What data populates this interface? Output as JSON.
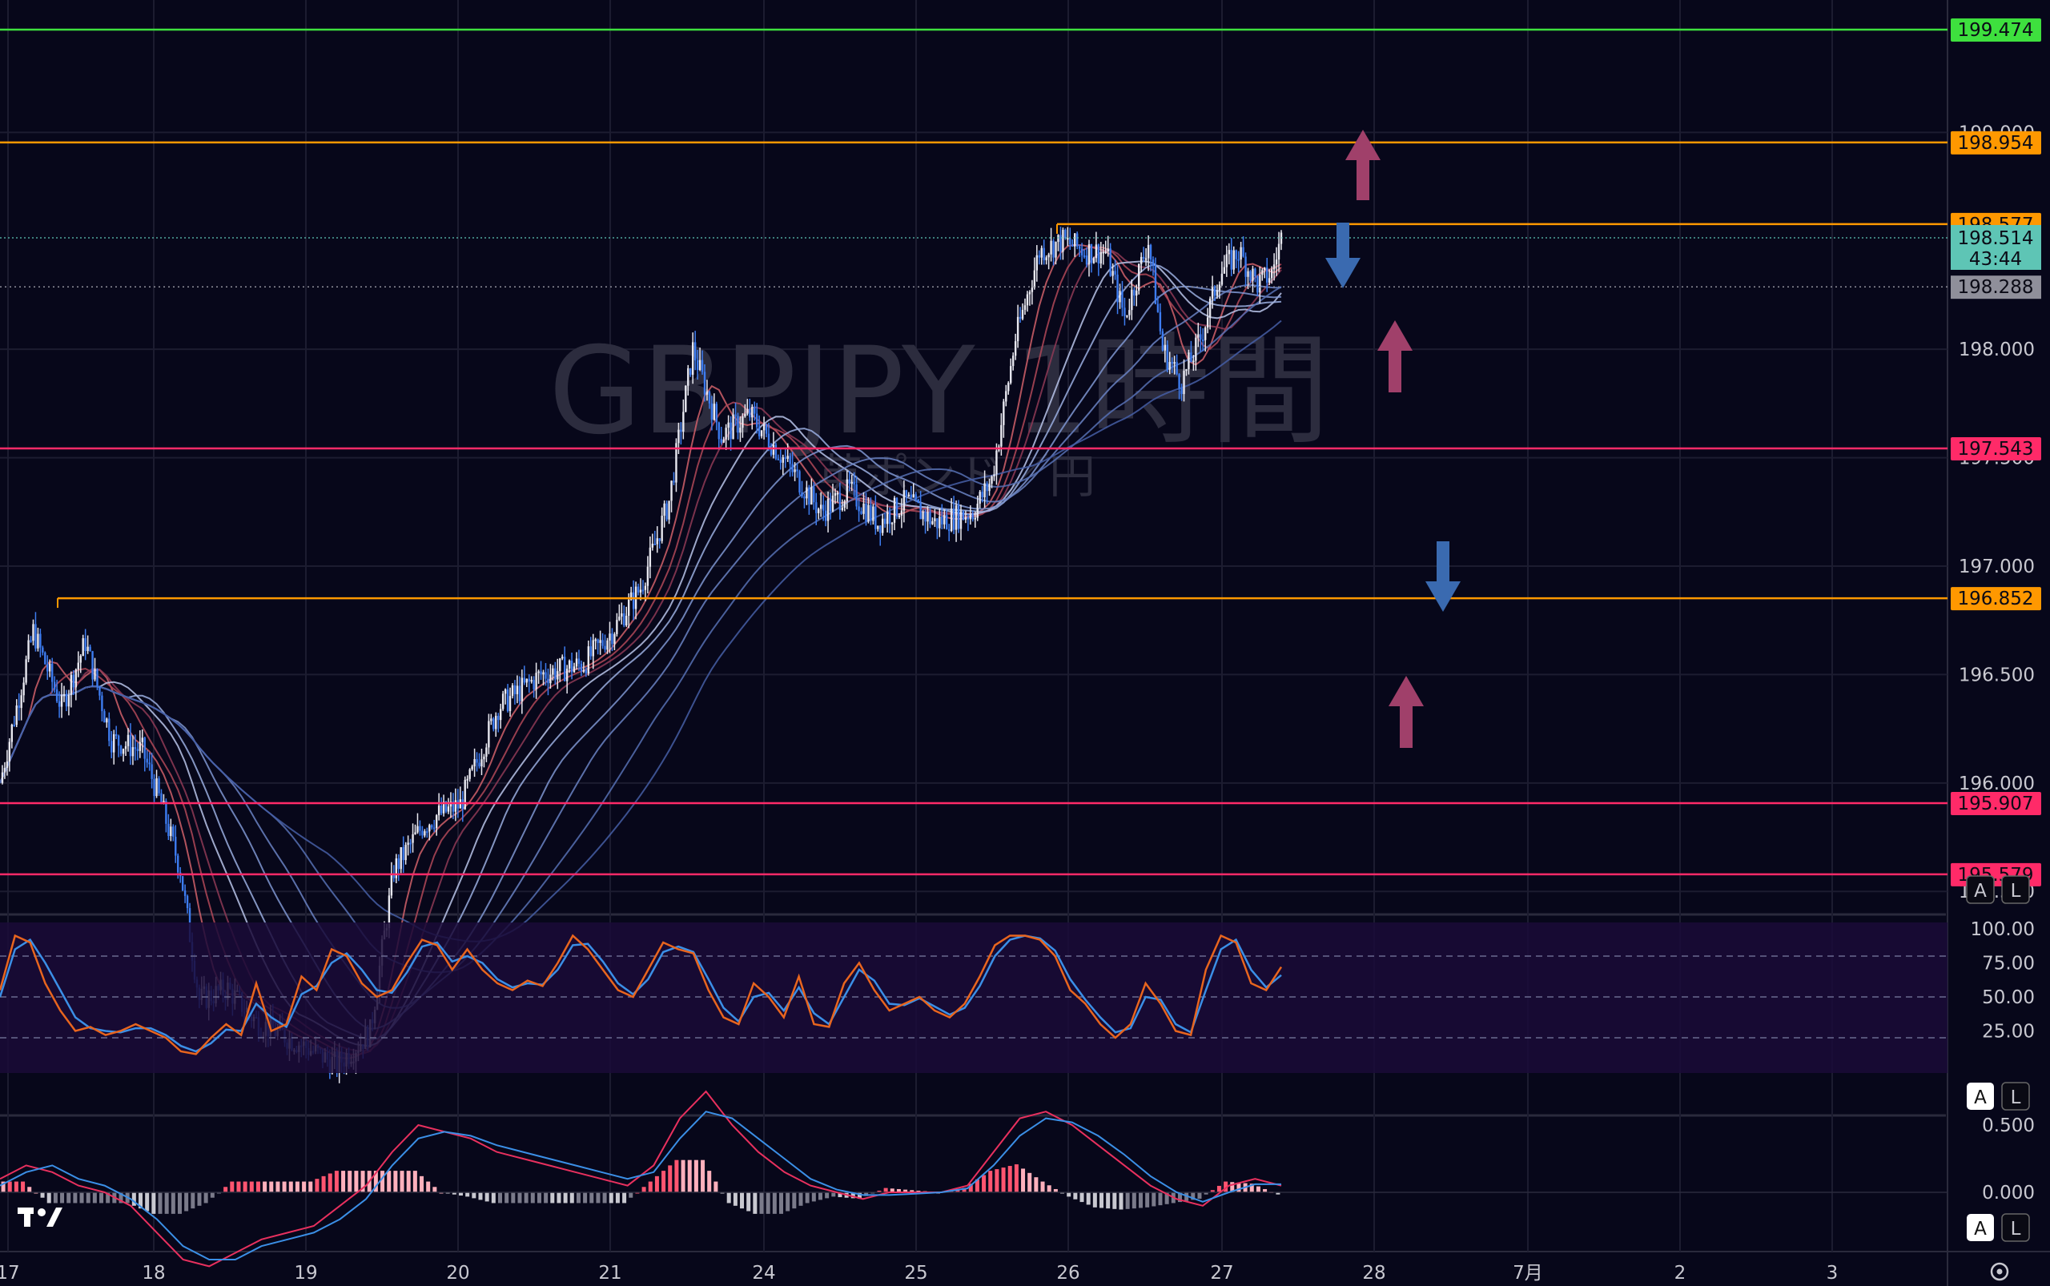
{
  "chart_data": {
    "type": "candlestick",
    "title": "GBPJPY 1時間",
    "subtitle": "英ポンド／円",
    "timeframe": "1時間",
    "x_tick_labels": [
      "17",
      "18",
      "19",
      "20",
      "21",
      "24",
      "25",
      "26",
      "27",
      "28",
      "7月",
      "2",
      "3"
    ],
    "price_axis": {
      "ticks": [
        "199.000",
        "198.000",
        "197.500",
        "197.000",
        "196.500",
        "196.000",
        "195.500"
      ],
      "range": [
        195.0,
        199.6
      ]
    },
    "horizontal_lines": [
      {
        "price": 199.474,
        "label": "199.474",
        "color": "#3ee03e"
      },
      {
        "price": 198.954,
        "label": "198.954",
        "color": "#ff9800"
      },
      {
        "price": 198.577,
        "label": "198.577",
        "color": "#ff9800"
      },
      {
        "price": 197.543,
        "label": "197.543",
        "color": "#ff2a68"
      },
      {
        "price": 196.852,
        "label": "196.852",
        "color": "#ff9800"
      },
      {
        "price": 195.907,
        "label": "195.907",
        "color": "#ff2a68"
      },
      {
        "price": 195.579,
        "label": "195.579",
        "color": "#ff2a68"
      }
    ],
    "current_price": {
      "price": 198.514,
      "label": "198.514",
      "countdown": "43:44",
      "color": "#5ec5b5"
    },
    "dotted_level": {
      "price": 198.288,
      "label": "198.288",
      "color": "#8f8f9a"
    },
    "close_path": [
      [
        0,
        196.0
      ],
      [
        14,
        196.7
      ],
      [
        26,
        196.35
      ],
      [
        36,
        196.65
      ],
      [
        47,
        196.2
      ],
      [
        60,
        196.15
      ],
      [
        68,
        195.9
      ],
      [
        76,
        195.6
      ],
      [
        84,
        195.0
      ],
      [
        96,
        195.05
      ],
      [
        108,
        194.9
      ],
      [
        126,
        194.8
      ],
      [
        142,
        194.7
      ],
      [
        156,
        194.85
      ],
      [
        166,
        195.6
      ],
      [
        178,
        195.8
      ],
      [
        184,
        195.85
      ],
      [
        194,
        195.9
      ],
      [
        210,
        196.35
      ],
      [
        228,
        196.5
      ],
      [
        246,
        196.55
      ],
      [
        258,
        196.7
      ],
      [
        270,
        196.9
      ],
      [
        282,
        197.3
      ],
      [
        292,
        198.0
      ],
      [
        304,
        197.6
      ],
      [
        316,
        197.7
      ],
      [
        330,
        197.5
      ],
      [
        346,
        197.25
      ],
      [
        358,
        197.35
      ],
      [
        370,
        197.2
      ],
      [
        382,
        197.3
      ],
      [
        394,
        197.2
      ],
      [
        410,
        197.25
      ],
      [
        418,
        197.4
      ],
      [
        428,
        198.05
      ],
      [
        438,
        198.45
      ],
      [
        448,
        198.5
      ],
      [
        458,
        198.45
      ],
      [
        466,
        198.45
      ],
      [
        474,
        198.15
      ],
      [
        484,
        198.5
      ],
      [
        490,
        198.0
      ],
      [
        498,
        197.85
      ],
      [
        506,
        198.05
      ],
      [
        514,
        198.35
      ],
      [
        522,
        198.45
      ],
      [
        530,
        198.3
      ],
      [
        536,
        198.35
      ],
      [
        540,
        198.514
      ]
    ],
    "stochastic": {
      "ticks": [
        "100.00",
        "75.00",
        "50.00",
        "25.00"
      ],
      "upper": 80,
      "mid": 50,
      "lower": 20,
      "k": [
        55,
        95,
        90,
        60,
        40,
        25,
        28,
        22,
        25,
        30,
        25,
        20,
        10,
        8,
        20,
        30,
        22,
        60,
        25,
        30,
        65,
        55,
        85,
        80,
        60,
        50,
        55,
        75,
        92,
        88,
        70,
        85,
        70,
        60,
        55,
        62,
        58,
        75,
        95,
        85,
        70,
        55,
        50,
        70,
        90,
        85,
        82,
        55,
        35,
        30,
        60,
        50,
        35,
        65,
        30,
        28,
        60,
        75,
        55,
        40,
        45,
        50,
        40,
        35,
        45,
        65,
        88,
        95,
        95,
        92,
        80,
        55,
        45,
        30,
        20,
        30,
        60,
        45,
        25,
        22,
        70,
        95,
        90,
        60,
        55,
        72
      ],
      "d": [
        50,
        85,
        92,
        75,
        55,
        35,
        27,
        25,
        24,
        27,
        27,
        22,
        14,
        10,
        16,
        26,
        25,
        45,
        35,
        28,
        52,
        58,
        75,
        82,
        70,
        55,
        53,
        68,
        87,
        90,
        76,
        80,
        75,
        63,
        57,
        60,
        59,
        70,
        88,
        89,
        76,
        60,
        52,
        63,
        83,
        87,
        83,
        63,
        42,
        32,
        50,
        53,
        40,
        57,
        38,
        30,
        50,
        70,
        62,
        45,
        44,
        49,
        43,
        37,
        42,
        58,
        80,
        92,
        95,
        93,
        84,
        63,
        48,
        35,
        24,
        27,
        50,
        48,
        30,
        24,
        55,
        85,
        92,
        70,
        57,
        66
      ]
    },
    "macd": {
      "ticks": [
        "0.500",
        "0.000"
      ],
      "macd_line": [
        0.1,
        0.2,
        0.15,
        0.05,
        0.0,
        -0.1,
        -0.3,
        -0.5,
        -0.55,
        -0.45,
        -0.35,
        -0.3,
        -0.25,
        -0.1,
        0.05,
        0.3,
        0.5,
        0.45,
        0.4,
        0.3,
        0.25,
        0.2,
        0.15,
        0.1,
        0.05,
        0.2,
        0.55,
        0.75,
        0.5,
        0.3,
        0.15,
        0.05,
        0.0,
        -0.05,
        0.0,
        0.0,
        0.0,
        0.05,
        0.3,
        0.55,
        0.6,
        0.5,
        0.35,
        0.2,
        0.05,
        -0.05,
        -0.1,
        0.05,
        0.1,
        0.05
      ],
      "signal_line": [
        0.05,
        0.15,
        0.2,
        0.1,
        0.05,
        -0.05,
        -0.2,
        -0.4,
        -0.5,
        -0.5,
        -0.4,
        -0.35,
        -0.3,
        -0.2,
        -0.05,
        0.2,
        0.4,
        0.45,
        0.42,
        0.35,
        0.3,
        0.25,
        0.2,
        0.15,
        0.1,
        0.15,
        0.4,
        0.6,
        0.55,
        0.4,
        0.25,
        0.1,
        0.02,
        -0.02,
        -0.02,
        -0.01,
        0.0,
        0.03,
        0.2,
        0.42,
        0.55,
        0.52,
        0.42,
        0.28,
        0.12,
        0.0,
        -0.07,
        0.0,
        0.06,
        0.06
      ]
    },
    "annotations": [
      {
        "type": "arrow-up",
        "color": "#a0406a"
      },
      {
        "type": "arrow-down",
        "color": "#3a6ab0"
      },
      {
        "type": "arrow-up",
        "color": "#a0406a"
      },
      {
        "type": "arrow-down",
        "color": "#3a6ab0"
      },
      {
        "type": "arrow-up",
        "color": "#a0406a"
      }
    ]
  },
  "ui": {
    "buttons": {
      "auto": "A",
      "log": "L"
    },
    "logo": "TV",
    "settings_icon": "gear-icon"
  },
  "colors": {
    "bg": "#07071a",
    "bull": "#e8e8f0",
    "bear": "#3d7cf0",
    "stoch_k": "#e8651e",
    "stoch_d": "#3b8fe6"
  }
}
